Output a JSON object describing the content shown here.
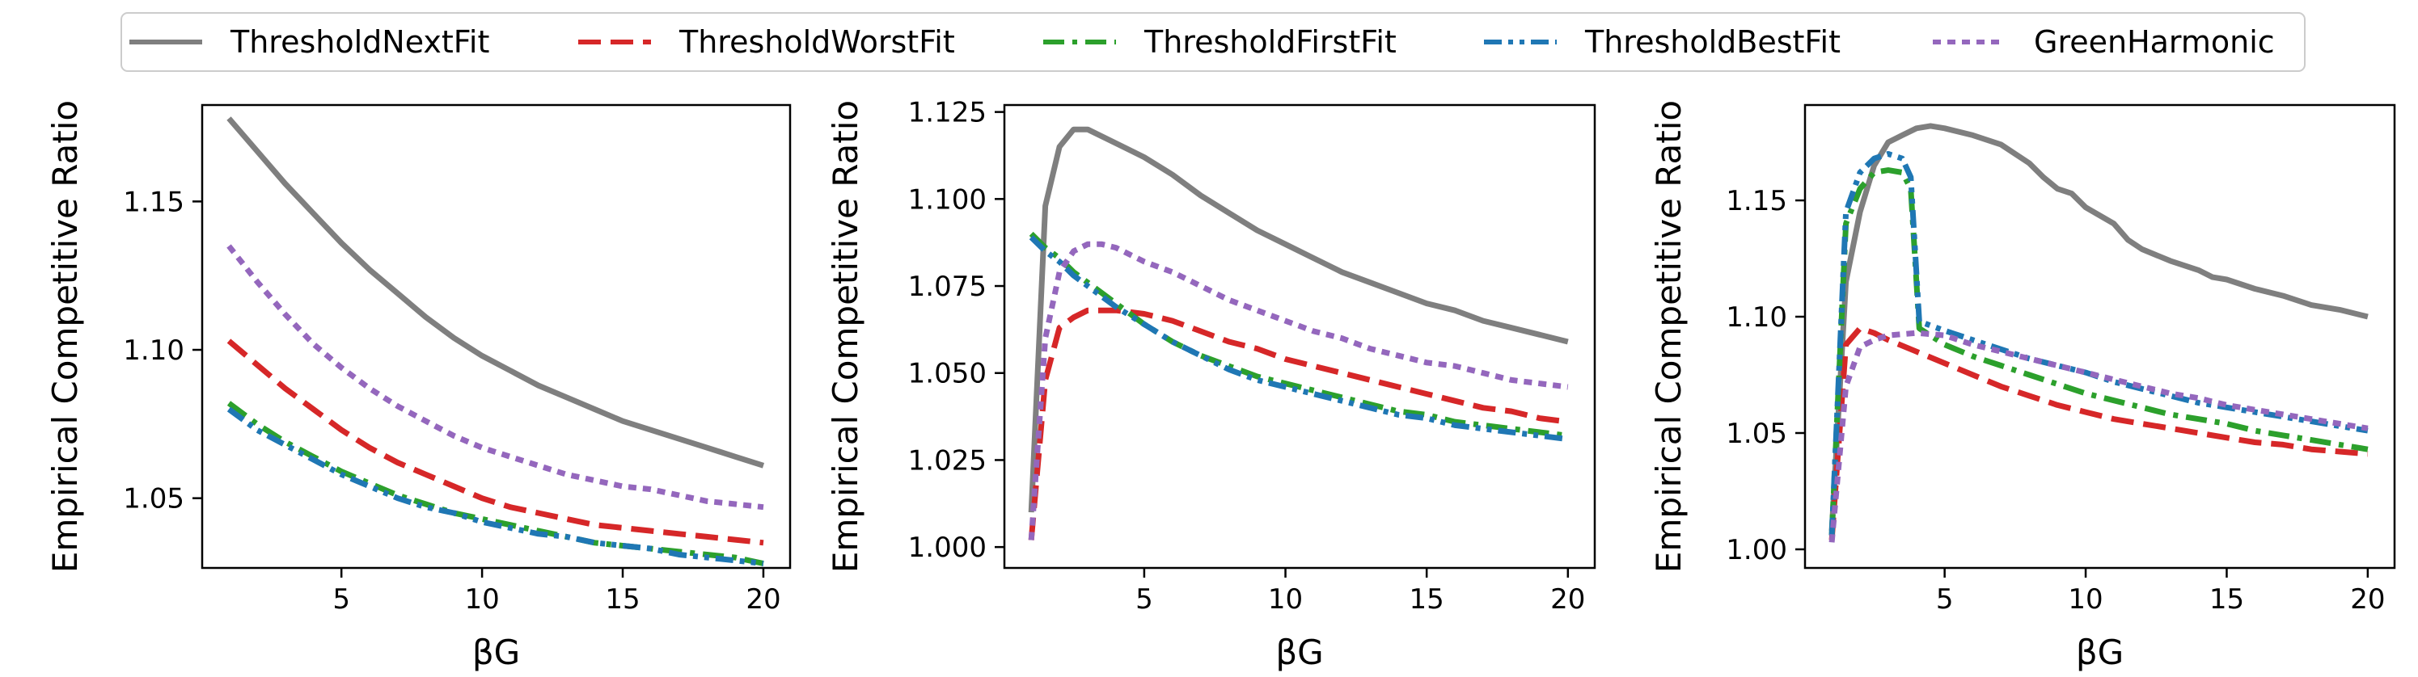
{
  "legend": {
    "placement": "top-center",
    "entries": [
      {
        "label": "ThresholdNextFit",
        "color": "#7f7f7f",
        "dash": "solid"
      },
      {
        "label": "ThresholdWorstFit",
        "color": "#d62728",
        "dash": "dashed"
      },
      {
        "label": "ThresholdFirstFit",
        "color": "#2ca02c",
        "dash": "dashdot"
      },
      {
        "label": "ThresholdBestFit",
        "color": "#1f77b4",
        "dash": "dashdotdot"
      },
      {
        "label": "GreenHarmonic",
        "color": "#9467bd",
        "dash": "dotted"
      }
    ]
  },
  "chart_data": [
    {
      "type": "line",
      "xlabel": "βG",
      "ylabel": "Empirical Competitive Ratio",
      "xlim": [
        0.05,
        20.95
      ],
      "ylim": [
        1.0265,
        1.1825
      ],
      "xticks": [
        5,
        10,
        15,
        20
      ],
      "xtick_labels": [
        "5",
        "10",
        "15",
        "20"
      ],
      "yticks": [
        1.05,
        1.1,
        1.15
      ],
      "ytick_labels": [
        "1.05",
        "1.10",
        "1.15"
      ],
      "grid": false,
      "series": [
        {
          "name": "ThresholdNextFit",
          "x": [
            1,
            2,
            3,
            4,
            5,
            6,
            7,
            8,
            9,
            10,
            11,
            12,
            13,
            14,
            15,
            16,
            17,
            18,
            19,
            20
          ],
          "y": [
            1.178,
            1.167,
            1.156,
            1.146,
            1.136,
            1.127,
            1.119,
            1.111,
            1.104,
            1.098,
            1.093,
            1.088,
            1.084,
            1.08,
            1.076,
            1.073,
            1.07,
            1.067,
            1.064,
            1.061
          ]
        },
        {
          "name": "ThresholdWorstFit",
          "x": [
            1,
            2,
            3,
            4,
            5,
            6,
            7,
            8,
            9,
            10,
            11,
            12,
            13,
            14,
            15,
            16,
            17,
            18,
            19,
            20
          ],
          "y": [
            1.103,
            1.095,
            1.087,
            1.08,
            1.073,
            1.067,
            1.062,
            1.058,
            1.054,
            1.05,
            1.047,
            1.045,
            1.043,
            1.041,
            1.04,
            1.039,
            1.038,
            1.037,
            1.036,
            1.035
          ]
        },
        {
          "name": "ThresholdFirstFit",
          "x": [
            1,
            2,
            3,
            4,
            5,
            6,
            7,
            8,
            9,
            10,
            11,
            12,
            13,
            14,
            15,
            16,
            17,
            18,
            19,
            20
          ],
          "y": [
            1.082,
            1.075,
            1.069,
            1.064,
            1.059,
            1.055,
            1.051,
            1.048,
            1.045,
            1.043,
            1.041,
            1.039,
            1.037,
            1.035,
            1.034,
            1.033,
            1.032,
            1.031,
            1.03,
            1.028
          ]
        },
        {
          "name": "ThresholdBestFit",
          "x": [
            1,
            2,
            3,
            4,
            5,
            6,
            7,
            8,
            9,
            10,
            11,
            12,
            13,
            14,
            15,
            16,
            17,
            18,
            19,
            20
          ],
          "y": [
            1.08,
            1.073,
            1.068,
            1.063,
            1.058,
            1.054,
            1.05,
            1.047,
            1.045,
            1.042,
            1.04,
            1.038,
            1.037,
            1.035,
            1.034,
            1.033,
            1.031,
            1.03,
            1.029,
            1.028
          ]
        },
        {
          "name": "GreenHarmonic",
          "x": [
            1,
            2,
            3,
            4,
            5,
            6,
            7,
            8,
            9,
            10,
            11,
            12,
            13,
            14,
            15,
            16,
            17,
            18,
            19,
            20
          ],
          "y": [
            1.135,
            1.123,
            1.112,
            1.102,
            1.094,
            1.087,
            1.081,
            1.076,
            1.071,
            1.067,
            1.064,
            1.061,
            1.058,
            1.056,
            1.054,
            1.053,
            1.051,
            1.049,
            1.048,
            1.047
          ]
        }
      ]
    },
    {
      "type": "line",
      "xlabel": "βG",
      "ylabel": "Empirical Competitive Ratio",
      "xlim": [
        0.05,
        20.95
      ],
      "ylim": [
        0.994,
        1.127
      ],
      "xticks": [
        5,
        10,
        15,
        20
      ],
      "xtick_labels": [
        "5",
        "10",
        "15",
        "20"
      ],
      "yticks": [
        1.0,
        1.025,
        1.05,
        1.075,
        1.1,
        1.125
      ],
      "ytick_labels": [
        "1.000",
        "1.025",
        "1.050",
        "1.075",
        "1.100",
        "1.125"
      ],
      "grid": false,
      "series": [
        {
          "name": "ThresholdNextFit",
          "x": [
            1,
            1.5,
            2,
            2.5,
            3,
            4,
            5,
            6,
            7,
            8,
            9,
            10,
            11,
            12,
            13,
            14,
            15,
            16,
            17,
            18,
            19,
            20
          ],
          "y": [
            1.01,
            1.098,
            1.115,
            1.12,
            1.12,
            1.116,
            1.112,
            1.107,
            1.101,
            1.096,
            1.091,
            1.087,
            1.083,
            1.079,
            1.076,
            1.073,
            1.07,
            1.068,
            1.065,
            1.063,
            1.061,
            1.059
          ]
        },
        {
          "name": "ThresholdWorstFit",
          "x": [
            1,
            1.5,
            2,
            2.5,
            3,
            4,
            5,
            6,
            7,
            8,
            9,
            10,
            11,
            12,
            13,
            14,
            15,
            16,
            17,
            18,
            19,
            20
          ],
          "y": [
            1.002,
            1.048,
            1.063,
            1.066,
            1.068,
            1.068,
            1.067,
            1.065,
            1.062,
            1.059,
            1.057,
            1.054,
            1.052,
            1.05,
            1.048,
            1.046,
            1.044,
            1.042,
            1.04,
            1.039,
            1.037,
            1.036
          ]
        },
        {
          "name": "ThresholdFirstFit",
          "x": [
            1,
            1.5,
            2,
            2.5,
            3,
            4,
            5,
            6,
            7,
            8,
            9,
            10,
            11,
            12,
            13,
            14,
            15,
            16,
            17,
            18,
            19,
            20
          ],
          "y": [
            1.09,
            1.086,
            1.083,
            1.079,
            1.076,
            1.07,
            1.064,
            1.059,
            1.055,
            1.052,
            1.049,
            1.047,
            1.045,
            1.043,
            1.041,
            1.039,
            1.038,
            1.036,
            1.035,
            1.034,
            1.033,
            1.032
          ]
        },
        {
          "name": "ThresholdBestFit",
          "x": [
            1,
            1.5,
            2,
            2.5,
            3,
            4,
            5,
            6,
            7,
            8,
            9,
            10,
            11,
            12,
            13,
            14,
            15,
            16,
            17,
            18,
            19,
            20
          ],
          "y": [
            1.089,
            1.085,
            1.082,
            1.078,
            1.075,
            1.069,
            1.064,
            1.059,
            1.055,
            1.051,
            1.048,
            1.046,
            1.044,
            1.042,
            1.04,
            1.038,
            1.037,
            1.035,
            1.034,
            1.033,
            1.032,
            1.031
          ]
        },
        {
          "name": "GreenHarmonic",
          "x": [
            1,
            1.5,
            2,
            2.5,
            3,
            3.5,
            4,
            5,
            6,
            7,
            8,
            9,
            10,
            11,
            12,
            13,
            14,
            15,
            16,
            17,
            18,
            19,
            20
          ],
          "y": [
            1.002,
            1.06,
            1.079,
            1.085,
            1.087,
            1.087,
            1.086,
            1.082,
            1.079,
            1.075,
            1.071,
            1.068,
            1.065,
            1.062,
            1.06,
            1.057,
            1.055,
            1.053,
            1.052,
            1.05,
            1.048,
            1.047,
            1.046
          ]
        }
      ]
    },
    {
      "type": "line",
      "xlabel": "βG",
      "ylabel": "Empirical Competitive Ratio",
      "xlim": [
        0.05,
        20.95
      ],
      "ylim": [
        0.992,
        1.191
      ],
      "xticks": [
        5,
        10,
        15,
        20
      ],
      "xtick_labels": [
        "5",
        "10",
        "15",
        "20"
      ],
      "yticks": [
        1.0,
        1.05,
        1.1,
        1.15
      ],
      "ytick_labels": [
        "1.00",
        "1.05",
        "1.10",
        "1.15"
      ],
      "grid": false,
      "series": [
        {
          "name": "ThresholdNextFit",
          "x": [
            1,
            1.5,
            2,
            2.5,
            3,
            3.5,
            4,
            4.5,
            5,
            6,
            7,
            8,
            8.5,
            9,
            9.5,
            10,
            11,
            11.5,
            12,
            13,
            14,
            14.5,
            15,
            16,
            17,
            18,
            19,
            20
          ],
          "y": [
            1.008,
            1.115,
            1.145,
            1.165,
            1.175,
            1.178,
            1.181,
            1.182,
            1.181,
            1.178,
            1.174,
            1.166,
            1.16,
            1.155,
            1.153,
            1.147,
            1.14,
            1.133,
            1.129,
            1.124,
            1.12,
            1.117,
            1.116,
            1.112,
            1.109,
            1.105,
            1.103,
            1.1
          ]
        },
        {
          "name": "ThresholdWorstFit",
          "x": [
            1,
            1.5,
            2,
            2.5,
            3,
            4,
            5,
            6,
            7,
            8,
            9,
            10,
            11,
            12,
            13,
            14,
            15,
            16,
            17,
            18,
            19,
            20
          ],
          "y": [
            1.004,
            1.088,
            1.095,
            1.093,
            1.09,
            1.085,
            1.08,
            1.075,
            1.07,
            1.066,
            1.062,
            1.059,
            1.056,
            1.054,
            1.052,
            1.05,
            1.048,
            1.046,
            1.045,
            1.043,
            1.042,
            1.041
          ]
        },
        {
          "name": "ThresholdFirstFit",
          "x": [
            1,
            1.5,
            2,
            2.5,
            3,
            3.5,
            3.8,
            4.1,
            5,
            6,
            7,
            8,
            9,
            10,
            11,
            12,
            13,
            14,
            15,
            16,
            17,
            18,
            19,
            20
          ],
          "y": [
            1.006,
            1.14,
            1.155,
            1.162,
            1.163,
            1.162,
            1.155,
            1.095,
            1.088,
            1.083,
            1.079,
            1.075,
            1.071,
            1.067,
            1.064,
            1.061,
            1.058,
            1.056,
            1.054,
            1.051,
            1.049,
            1.047,
            1.045,
            1.043
          ]
        },
        {
          "name": "ThresholdBestFit",
          "x": [
            1,
            1.5,
            2,
            2.5,
            3,
            3.5,
            3.8,
            4.1,
            5,
            6,
            7,
            8,
            9,
            10,
            11,
            12,
            13,
            14,
            15,
            16,
            17,
            18,
            19,
            20
          ],
          "y": [
            1.006,
            1.145,
            1.162,
            1.168,
            1.17,
            1.168,
            1.16,
            1.098,
            1.094,
            1.09,
            1.086,
            1.082,
            1.079,
            1.076,
            1.072,
            1.069,
            1.066,
            1.063,
            1.061,
            1.059,
            1.057,
            1.055,
            1.053,
            1.051
          ]
        },
        {
          "name": "GreenHarmonic",
          "x": [
            1,
            1.5,
            2,
            2.5,
            3,
            4,
            5,
            6,
            7,
            8,
            9,
            10,
            11,
            12,
            13,
            14,
            15,
            16,
            17,
            18,
            19,
            20
          ],
          "y": [
            1.003,
            1.07,
            1.087,
            1.09,
            1.092,
            1.093,
            1.092,
            1.088,
            1.085,
            1.082,
            1.079,
            1.076,
            1.073,
            1.07,
            1.067,
            1.065,
            1.062,
            1.06,
            1.058,
            1.056,
            1.054,
            1.052
          ]
        }
      ]
    }
  ]
}
